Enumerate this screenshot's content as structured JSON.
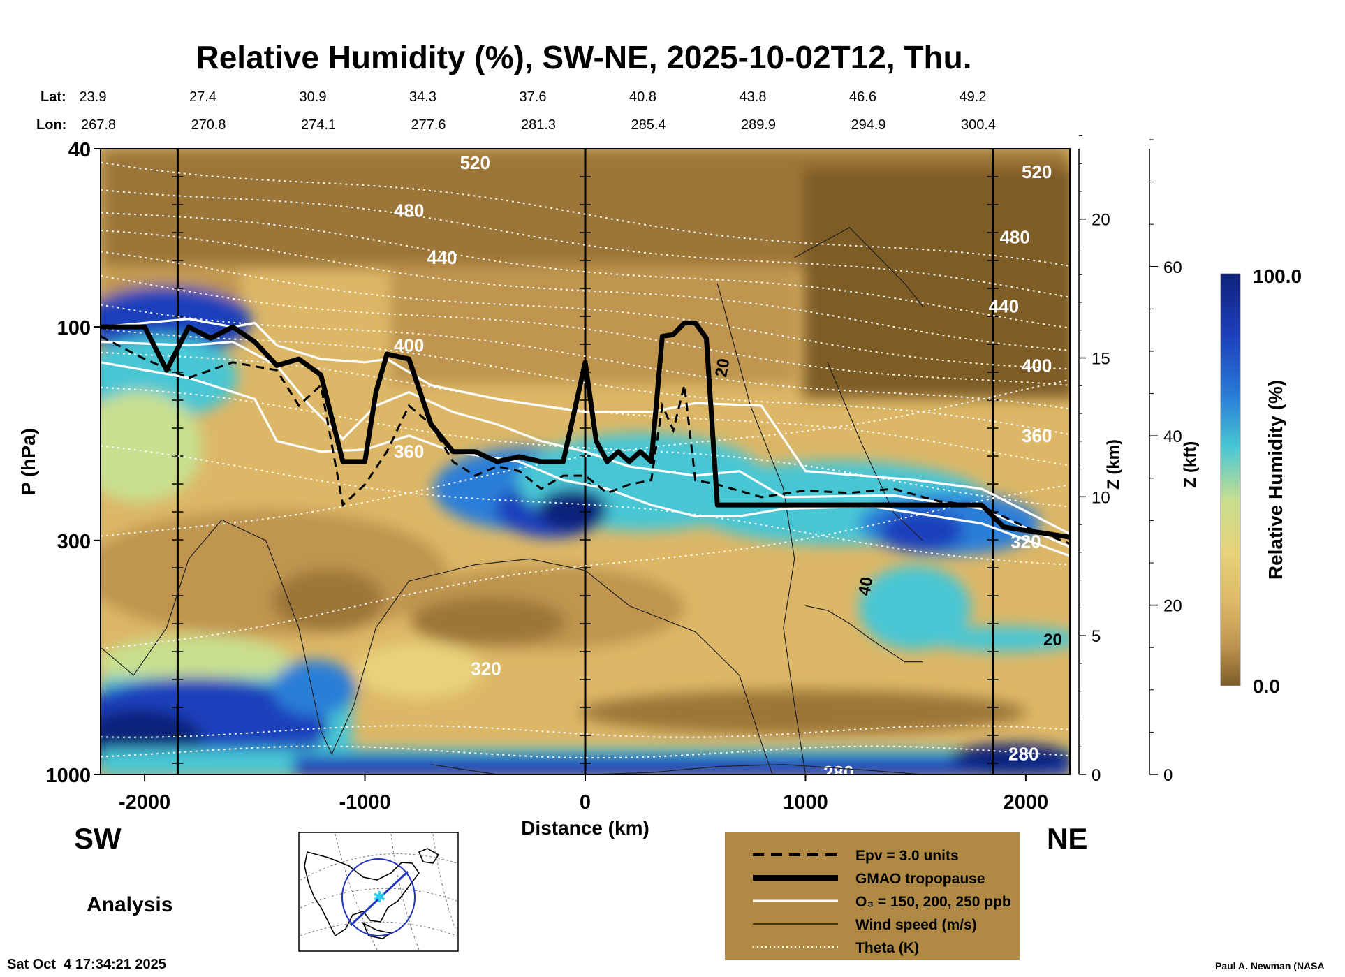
{
  "chart_data": {
    "type": "heatmap",
    "title": "Relative Humidity (%), SW-NE, 2025-10-02T12, Thu.",
    "xlabel": "Distance (km)",
    "ylabel": "P (hPa)",
    "xlim": [
      -2200,
      2200
    ],
    "x_ticks": [
      "-2000",
      "-1000",
      "0",
      "1000",
      "2000"
    ],
    "y_ticks": [
      "40",
      "100",
      "300",
      "1000"
    ],
    "z_km_label": "Z (km)",
    "z_km_ticks": [
      "20",
      "15",
      "10",
      "5",
      "0"
    ],
    "z_kft_label": "Z (kft)",
    "z_kft_ticks": [
      "60",
      "40",
      "20",
      "0"
    ],
    "lat_label": "Lat:",
    "lon_label": "Lon:",
    "lat": [
      "23.9",
      "27.4",
      "30.9",
      "34.3",
      "37.6",
      "40.8",
      "43.8",
      "46.6",
      "49.2"
    ],
    "lon": [
      "267.8",
      "270.8",
      "274.1",
      "277.6",
      "281.3",
      "285.4",
      "289.9",
      "294.9",
      "300.4"
    ],
    "direction_left": "SW",
    "direction_right": "NE",
    "colorbar": {
      "label": "Relative Humidity (%)",
      "max": "100.0",
      "min": "0.0"
    },
    "theta_labels": [
      "520",
      "480",
      "440",
      "400",
      "360",
      "320",
      "280"
    ],
    "wind_labels": [
      "20",
      "40"
    ],
    "legend": [
      {
        "style": "dashed",
        "label": "Epv = 3.0 units"
      },
      {
        "style": "thick",
        "label": "GMAO tropopause"
      },
      {
        "style": "white",
        "label": "O₃ = 150, 200, 250 ppb"
      },
      {
        "style": "thin",
        "label": "Wind speed (m/s)"
      },
      {
        "style": "dotted",
        "label": "Theta (K)"
      }
    ],
    "tropopause_hPa": [
      [
        -2200,
        100
      ],
      [
        -2000,
        100
      ],
      [
        -1900,
        125
      ],
      [
        -1800,
        100
      ],
      [
        -1700,
        106
      ],
      [
        -1600,
        100
      ],
      [
        -1500,
        108
      ],
      [
        -1400,
        122
      ],
      [
        -1300,
        118
      ],
      [
        -1200,
        128
      ],
      [
        -1100,
        200
      ],
      [
        -1000,
        200
      ],
      [
        -950,
        140
      ],
      [
        -900,
        115
      ],
      [
        -800,
        118
      ],
      [
        -700,
        165
      ],
      [
        -600,
        190
      ],
      [
        -500,
        190
      ],
      [
        -400,
        200
      ],
      [
        -300,
        195
      ],
      [
        -200,
        200
      ],
      [
        -100,
        200
      ],
      [
        0,
        120
      ],
      [
        50,
        180
      ],
      [
        100,
        200
      ],
      [
        150,
        190
      ],
      [
        200,
        200
      ],
      [
        250,
        190
      ],
      [
        300,
        200
      ],
      [
        350,
        105
      ],
      [
        400,
        104
      ],
      [
        450,
        98
      ],
      [
        500,
        98
      ],
      [
        550,
        106
      ],
      [
        600,
        250
      ],
      [
        1800,
        250
      ],
      [
        1900,
        280
      ],
      [
        2000,
        285
      ],
      [
        2200,
        295
      ]
    ],
    "palette": {
      "very_dry": "#7e5c27",
      "dry": "#9c7638",
      "mid_dry": "#bf9550",
      "moderate": "#dcb767",
      "light": "#e8d27a",
      "pale_green": "#c8df8f",
      "cyan": "#49c6d4",
      "blue": "#2a7ed8",
      "deep_blue": "#1d3fbb",
      "darkest": "#0f227a",
      "legend_bg": "#b08a45"
    },
    "analysis_label": "Analysis",
    "timestamp": "Sat Oct  4 17:34:21 2025",
    "credit": "Paul A. Newman (NASA"
  }
}
